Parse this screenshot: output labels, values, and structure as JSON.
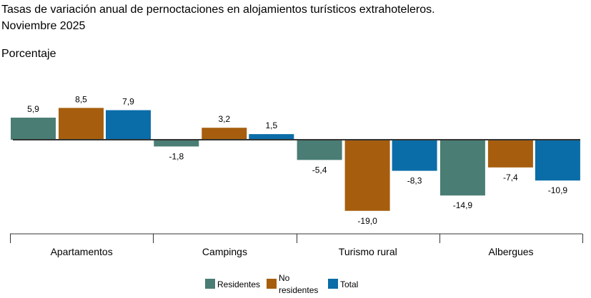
{
  "chart_data": {
    "type": "bar",
    "title": "Tasas de variación anual de pernoctaciones en alojamientos turísticos extrahoteleros.",
    "subtitle": "Noviembre 2025",
    "ylabel": "Porcentaje",
    "categories": [
      "Apartamentos",
      "Campings",
      "Turismo rural",
      "Albergues"
    ],
    "series": [
      {
        "name": "Residentes",
        "color": "#4a7d74",
        "values": [
          5.9,
          -1.8,
          -5.4,
          -14.9
        ],
        "labels": [
          "5,9",
          "-1,8",
          "-5,4",
          "-14,9"
        ]
      },
      {
        "name": "No residentes",
        "color": "#a65e0e",
        "values": [
          8.5,
          3.2,
          -19.0,
          -7.4
        ],
        "labels": [
          "8,5",
          "3,2",
          "-19,0",
          "-7,4"
        ]
      },
      {
        "name": "Total",
        "color": "#0a6da8",
        "values": [
          7.9,
          1.5,
          -8.3,
          -10.9
        ],
        "labels": [
          "7,9",
          "1,5",
          "-8,3",
          "-10,9"
        ]
      }
    ],
    "legend_position": "bottom",
    "grid": false
  }
}
